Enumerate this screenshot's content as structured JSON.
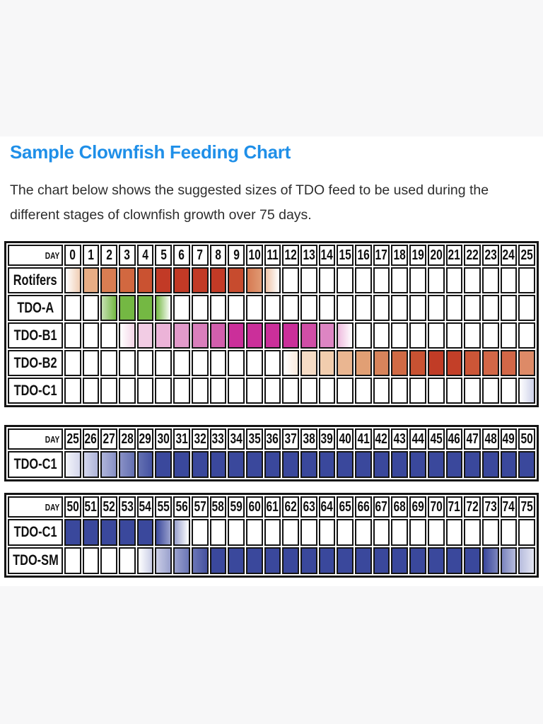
{
  "page": {
    "title": "Sample Clownfish Feeding Chart",
    "description": "The chart below shows the suggested sizes of TDO feed to be used during the different stages of clownfish growth over 75 days.",
    "title_color": "#1f8fe8",
    "background_color": "#f7f7f8",
    "content_background": "#ffffff"
  },
  "chart_data": {
    "type": "heatmap",
    "title": "Sample Clownfish Feeding Chart",
    "x_unit": "day",
    "day_header_label": "DAY",
    "day_range_total": [
      0,
      75
    ],
    "palette": {
      "rotifers_red": "#c23a26",
      "tdo_a_green": "#74b843",
      "tdo_b1_magenta": "#cb2f9a",
      "tdo_b2_orange": "#c8502f",
      "tdo_c_blue": "#3a489c",
      "grid_border": "#141414"
    },
    "series_summary": [
      {
        "label": "Rotifers",
        "approx_days": "0-11"
      },
      {
        "label": "TDO-A",
        "approx_days": "2-5"
      },
      {
        "label": "TDO-B1",
        "approx_days": "3-15"
      },
      {
        "label": "TDO-B2",
        "approx_days": "12-25"
      },
      {
        "label": "TDO-C1",
        "approx_days": "25-56"
      },
      {
        "label": "TDO-SM",
        "approx_days": "54-75"
      }
    ],
    "tables": [
      {
        "day_start": 0,
        "day_end": 25,
        "days": [
          0,
          1,
          2,
          3,
          4,
          5,
          6,
          7,
          8,
          9,
          10,
          11,
          12,
          13,
          14,
          15,
          16,
          17,
          18,
          19,
          20,
          21,
          22,
          23,
          24,
          25
        ],
        "rows": [
          {
            "label": "Rotifers",
            "cells": [
              "#ffffff|#f0cdb4",
              "#e7ad85",
              "#d97d52",
              "#d26840",
              "#ca5231",
              "#c23a26",
              "#c23a26",
              "#c23a26",
              "#c23a26",
              "#c74b2e",
              "#d67a52|#e09a74",
              "#eec4a8|#ffffff",
              "",
              "",
              "",
              "",
              "",
              "",
              "",
              "",
              "",
              "",
              "",
              "",
              "",
              ""
            ]
          },
          {
            "label": "TDO-A",
            "cells": [
              "",
              "",
              "#c5e0b2|#74b843",
              "#74b843",
              "#74b843",
              "#74b843|#ffffff",
              "",
              "",
              "",
              "",
              "",
              "",
              "",
              "",
              "",
              "",
              "",
              "",
              "",
              "",
              "",
              "",
              "",
              "",
              "",
              ""
            ]
          },
          {
            "label": "TDO-B1",
            "cells": [
              "",
              "",
              "",
              "#ffffff|#f4d6e8",
              "#f2cce4",
              "#ecb3d8",
              "#e29aca",
              "#da7fbc",
              "#d25fad",
              "#cb2f9a",
              "#cb2f9a",
              "#cb2f9a",
              "#cb2f9a",
              "#d04ea6",
              "#dd85c3",
              "#eebade|#ffffff",
              "",
              "",
              "",
              "",
              "",
              "",
              "",
              "",
              "",
              ""
            ]
          },
          {
            "label": "TDO-B2",
            "cells": [
              "",
              "",
              "",
              "",
              "",
              "",
              "",
              "",
              "",
              "",
              "",
              "",
              "#ffffff|#faeade",
              "#f6dcc6",
              "#f1cdae",
              "#eab691",
              "#e19f74",
              "#d8845b",
              "#d06a45",
              "#c85232",
              "#c13c26",
              "#c33f28",
              "#cc5637",
              "#d26747",
              "#d26747",
              "#dd8a67"
            ]
          },
          {
            "label": "TDO-C1",
            "cells": [
              "",
              "",
              "",
              "",
              "",
              "",
              "",
              "",
              "",
              "",
              "",
              "",
              "",
              "",
              "",
              "",
              "",
              "",
              "",
              "",
              "",
              "",
              "",
              "",
              "",
              "#ffffff|#cdd1e9"
            ]
          }
        ]
      },
      {
        "day_start": 25,
        "day_end": 50,
        "days": [
          25,
          26,
          27,
          28,
          29,
          30,
          31,
          32,
          33,
          34,
          35,
          36,
          37,
          38,
          39,
          40,
          41,
          42,
          43,
          44,
          45,
          46,
          47,
          48,
          49,
          50
        ],
        "rows": [
          {
            "label": "TDO-C1",
            "cells": [
              "#f4f5fa|#d4d7ec",
              "#d4d7ec|#aeb4da",
              "#aeb4da|#8890c5",
              "#8890c5|#6470b2",
              "#6470b2|#4553a2",
              "#3a489c",
              "#3a489c",
              "#3a489c",
              "#3a489c",
              "#3a489c",
              "#3a489c",
              "#3a489c",
              "#3a489c",
              "#3a489c",
              "#3a489c",
              "#3a489c",
              "#3a489c",
              "#3a489c",
              "#3a489c",
              "#3a489c",
              "#3a489c",
              "#3a489c",
              "#3a489c",
              "#3a489c",
              "#3a489c",
              "#3a489c"
            ]
          }
        ]
      },
      {
        "day_start": 50,
        "day_end": 75,
        "days": [
          50,
          51,
          52,
          53,
          54,
          55,
          56,
          57,
          58,
          59,
          60,
          61,
          62,
          63,
          64,
          65,
          66,
          67,
          68,
          69,
          70,
          71,
          72,
          73,
          74,
          75
        ],
        "rows": [
          {
            "label": "TDO-C1",
            "cells": [
              "#3a489c",
              "#3a489c",
              "#3a489c",
              "#3a489c",
              "#3a489c",
              "#3a489c|#9aa1cd",
              "#9aa1cd|#ffffff",
              "",
              "",
              "",
              "",
              "",
              "",
              "",
              "",
              "",
              "",
              "",
              "",
              "",
              "",
              "",
              "",
              "",
              "",
              ""
            ]
          },
          {
            "label": "TDO-SM",
            "cells": [
              "",
              "",
              "",
              "",
              "#ffffff|#c9cde6",
              "#c9cde6|#9aa1cd",
              "#9aa1cd|#6b76b6",
              "#6b76b6|#45529f",
              "#3a489c",
              "#3a489c",
              "#3a489c",
              "#3a489c",
              "#3a489c",
              "#3a489c",
              "#3a489c",
              "#3a489c",
              "#3a489c",
              "#3a489c",
              "#3a489c",
              "#3a489c",
              "#3a489c",
              "#3a489c",
              "#3a489c",
              "#3a489c|#7b84bd",
              "#7b84bd|#b7bcdd",
              "#b7bcdd|#e4e6f3"
            ]
          }
        ]
      }
    ]
  }
}
